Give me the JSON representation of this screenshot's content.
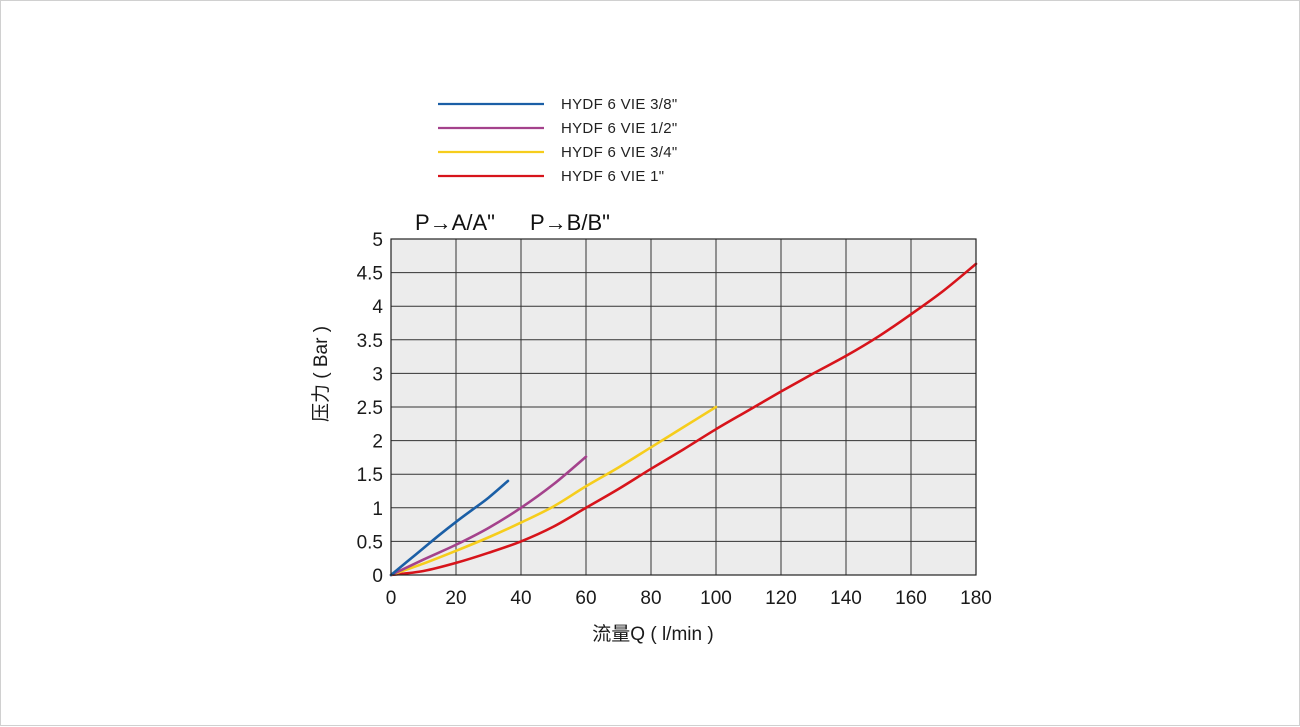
{
  "chart_data": {
    "type": "line",
    "title": "",
    "direction_labels": [
      "P→A/A\"",
      "P→B/B\""
    ],
    "xlabel": "流量Q ( l/min )",
    "ylabel": "压力 ( Bar )",
    "xlim": [
      0,
      180
    ],
    "ylim": [
      0,
      5
    ],
    "x_ticks": [
      "0",
      "20",
      "40",
      "60",
      "80",
      "100",
      "120",
      "140",
      "160",
      "180"
    ],
    "y_ticks": [
      "0",
      "0.5",
      "1",
      "1.5",
      "2",
      "2.5",
      "3",
      "3.5",
      "4",
      "4.5",
      "5"
    ],
    "grid": true,
    "background": "#ececec",
    "legend_position": "top",
    "series": [
      {
        "name": "HYDF 6 VIE 3/8\"",
        "color": "#1b5fa6",
        "x": [
          0,
          5,
          10,
          15,
          20,
          25,
          30,
          36
        ],
        "y": [
          0,
          0.2,
          0.4,
          0.6,
          0.79,
          0.97,
          1.15,
          1.4
        ]
      },
      {
        "name": "HYDF 6 VIE 1/2\"",
        "color": "#a4428c",
        "x": [
          0,
          10,
          20,
          30,
          40,
          50,
          60
        ],
        "y": [
          0,
          0.23,
          0.45,
          0.7,
          1.0,
          1.35,
          1.76
        ]
      },
      {
        "name": "HYDF 6 VIE 3/4\"",
        "color": "#f6cd1c",
        "x": [
          0,
          10,
          20,
          30,
          40,
          50,
          60,
          70,
          80,
          90,
          100
        ],
        "y": [
          0,
          0.17,
          0.36,
          0.56,
          0.78,
          1.02,
          1.32,
          1.6,
          1.9,
          2.2,
          2.5
        ]
      },
      {
        "name": "HYDF 6 VIE 1\"",
        "color": "#d7141b",
        "x": [
          0,
          10,
          20,
          30,
          40,
          50,
          60,
          70,
          80,
          90,
          100,
          110,
          120,
          130,
          140,
          150,
          160,
          170,
          180
        ],
        "y": [
          0,
          0.06,
          0.18,
          0.33,
          0.5,
          0.72,
          1.0,
          1.28,
          1.58,
          1.87,
          2.17,
          2.45,
          2.73,
          3.0,
          3.26,
          3.55,
          3.88,
          4.23,
          4.63
        ]
      }
    ]
  }
}
